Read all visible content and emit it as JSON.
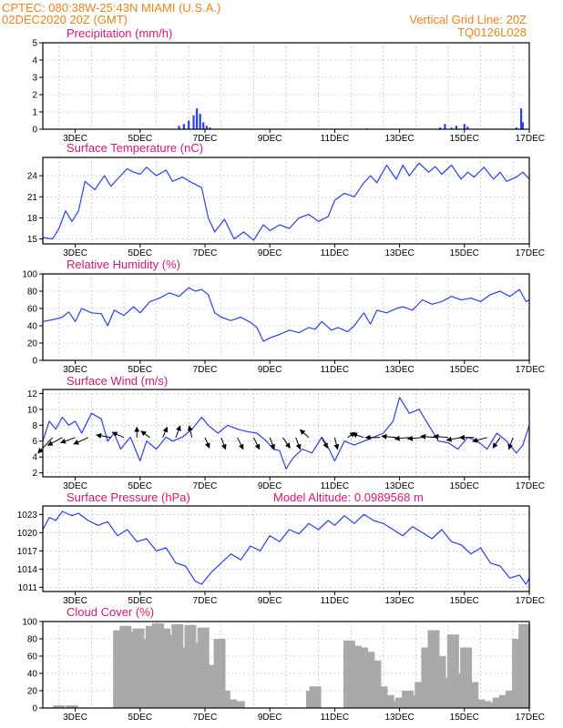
{
  "header": {
    "line1": "CPTEC:   080:38W-25:43N   MIAMI (U.S.A.)",
    "line2": "02DEC2020 20Z (GMT)",
    "right1": "Vertical Grid Line: 20Z",
    "right2": "TQ0126L028"
  },
  "colors": {
    "line": "#2b3fe8",
    "cloud": "#a9a9a9",
    "title": "#d4157a",
    "header": "#e8821e"
  },
  "chart_data": [
    {
      "type": "bar",
      "title": "Precipitation (mm/h)",
      "ylim": [
        0,
        5
      ],
      "yticks": [
        0,
        1,
        2,
        3,
        4,
        5
      ],
      "xticks": [
        "3DEC",
        "5DEC",
        "7DEC",
        "9DEC",
        "11DEC",
        "13DEC",
        "15DEC",
        "17DEC"
      ],
      "grid": true,
      "x": [
        6.2,
        6.35,
        6.5,
        6.65,
        6.75,
        6.85,
        6.95,
        7.05,
        7.15,
        12.0,
        14.25,
        14.4,
        14.6,
        14.75,
        15.0,
        15.1,
        16.6,
        16.75,
        16.8
      ],
      "values": [
        0.2,
        0.3,
        0.5,
        0.8,
        1.2,
        0.9,
        0.4,
        0.2,
        0.1,
        0.05,
        0.1,
        0.3,
        0.1,
        0.2,
        0.3,
        0.15,
        0.1,
        1.2,
        0.4
      ]
    },
    {
      "type": "line",
      "title": "Surface Temperature (nC)",
      "ylim": [
        14.3,
        26.6
      ],
      "yticks": [
        15,
        18,
        21,
        24
      ],
      "xticks": [
        "3DEC",
        "5DEC",
        "7DEC",
        "9DEC",
        "11DEC",
        "13DEC",
        "15DEC",
        "17DEC"
      ],
      "grid": true,
      "x": [
        2.0,
        2.3,
        2.5,
        2.7,
        2.9,
        3.1,
        3.3,
        3.6,
        3.9,
        4.1,
        4.3,
        4.6,
        4.8,
        5.0,
        5.2,
        5.5,
        5.8,
        6.0,
        6.3,
        6.6,
        6.9,
        7.1,
        7.3,
        7.6,
        7.9,
        8.2,
        8.5,
        8.8,
        9.0,
        9.3,
        9.6,
        9.9,
        10.2,
        10.5,
        10.8,
        11.0,
        11.3,
        11.6,
        11.9,
        12.1,
        12.3,
        12.6,
        12.9,
        13.1,
        13.3,
        13.6,
        13.9,
        14.1,
        14.3,
        14.6,
        14.9,
        15.1,
        15.3,
        15.6,
        15.9,
        16.1,
        16.3,
        16.6,
        16.8,
        17.0
      ],
      "values": [
        15.2,
        15.0,
        16.5,
        19.0,
        17.5,
        19.0,
        23.2,
        22.0,
        24.0,
        22.5,
        23.5,
        25.0,
        24.5,
        24.2,
        25.2,
        24.0,
        24.8,
        23.2,
        23.8,
        23.0,
        22.3,
        18.0,
        16.0,
        17.8,
        15.0,
        16.0,
        14.8,
        17.0,
        16.2,
        17.0,
        16.5,
        18.0,
        18.5,
        17.5,
        18.2,
        20.5,
        21.5,
        21.0,
        23.0,
        24.0,
        23.0,
        25.5,
        23.5,
        25.5,
        24.0,
        25.8,
        24.5,
        25.3,
        24.2,
        25.5,
        23.5,
        24.5,
        23.8,
        25.2,
        23.5,
        24.5,
        23.2,
        23.8,
        24.5,
        23.5
      ]
    },
    {
      "type": "line",
      "title": "Relative Humidity (%)",
      "ylim": [
        0,
        100
      ],
      "yticks": [
        0,
        20,
        40,
        60,
        80,
        100
      ],
      "xticks": [
        "3DEC",
        "5DEC",
        "7DEC",
        "9DEC",
        "11DEC",
        "13DEC",
        "15DEC",
        "17DEC"
      ],
      "grid": true,
      "x": [
        2.0,
        2.3,
        2.6,
        2.8,
        3.0,
        3.2,
        3.5,
        3.8,
        4.0,
        4.2,
        4.5,
        4.8,
        5.0,
        5.3,
        5.6,
        5.9,
        6.2,
        6.5,
        6.7,
        6.9,
        7.1,
        7.3,
        7.5,
        7.8,
        8.1,
        8.4,
        8.6,
        8.8,
        9.0,
        9.3,
        9.6,
        9.9,
        10.2,
        10.4,
        10.6,
        10.9,
        11.1,
        11.4,
        11.6,
        11.9,
        12.1,
        12.3,
        12.6,
        12.9,
        13.1,
        13.4,
        13.7,
        14.0,
        14.3,
        14.6,
        14.9,
        15.2,
        15.5,
        15.8,
        16.1,
        16.4,
        16.7,
        16.9,
        17.0
      ],
      "values": [
        45,
        47,
        50,
        56,
        45,
        60,
        55,
        54,
        40,
        58,
        52,
        62,
        55,
        68,
        72,
        78,
        74,
        84,
        80,
        82,
        76,
        55,
        50,
        46,
        50,
        44,
        38,
        22,
        26,
        30,
        35,
        32,
        38,
        36,
        45,
        35,
        38,
        33,
        40,
        55,
        42,
        58,
        55,
        60,
        62,
        58,
        70,
        65,
        68,
        74,
        70,
        72,
        68,
        76,
        80,
        74,
        82,
        68,
        70
      ]
    },
    {
      "type": "line",
      "title": "Surface Wind (m/s)",
      "ylim": [
        1.5,
        12.5
      ],
      "yticks": [
        2,
        4,
        6,
        8,
        10,
        12
      ],
      "xticks": [
        "3DEC",
        "5DEC",
        "7DEC",
        "9DEC",
        "11DEC",
        "13DEC",
        "15DEC",
        "17DEC"
      ],
      "grid": true,
      "x": [
        2.0,
        2.2,
        2.4,
        2.6,
        2.8,
        3.0,
        3.2,
        3.5,
        3.8,
        4.0,
        4.2,
        4.4,
        4.7,
        5.0,
        5.2,
        5.5,
        5.8,
        6.0,
        6.3,
        6.6,
        6.9,
        7.1,
        7.4,
        7.7,
        8.0,
        8.3,
        8.6,
        8.9,
        9.1,
        9.3,
        9.5,
        9.7,
        10.0,
        10.3,
        10.6,
        10.8,
        11.0,
        11.3,
        11.6,
        11.9,
        12.2,
        12.5,
        12.8,
        13.0,
        13.3,
        13.6,
        13.9,
        14.2,
        14.5,
        14.8,
        15.1,
        15.4,
        15.7,
        16.0,
        16.3,
        16.6,
        16.8,
        17.0
      ],
      "values": [
        6.0,
        8.5,
        7.5,
        9.0,
        8.0,
        8.5,
        7.0,
        9.5,
        8.8,
        6.0,
        7.0,
        5.0,
        6.5,
        3.5,
        6.0,
        5.0,
        6.5,
        6.0,
        6.5,
        7.5,
        9.0,
        8.0,
        7.0,
        8.0,
        7.5,
        7.2,
        7.0,
        6.0,
        5.0,
        4.8,
        2.5,
        3.8,
        5.0,
        4.5,
        6.5,
        5.2,
        3.5,
        6.0,
        5.5,
        6.0,
        6.5,
        7.0,
        8.5,
        11.5,
        9.5,
        10.0,
        8.0,
        6.0,
        5.8,
        5.0,
        6.5,
        6.0,
        5.0,
        7.0,
        6.0,
        4.5,
        5.5,
        8.0
      ]
    },
    {
      "type": "line",
      "title": "Surface Pressure (hPa)",
      "ylim": [
        1010.3,
        1024.4
      ],
      "yticks": [
        1011,
        1014,
        1017,
        1020,
        1023
      ],
      "xticks": [
        "3DEC",
        "5DEC",
        "7DEC",
        "9DEC",
        "11DEC",
        "13DEC",
        "15DEC",
        "17DEC"
      ],
      "grid": true,
      "x": [
        2.0,
        2.2,
        2.4,
        2.6,
        2.9,
        3.1,
        3.4,
        3.7,
        4.0,
        4.3,
        4.6,
        4.9,
        5.2,
        5.5,
        5.8,
        6.1,
        6.4,
        6.7,
        6.9,
        7.2,
        7.5,
        7.8,
        8.1,
        8.4,
        8.7,
        9.0,
        9.3,
        9.6,
        9.9,
        10.2,
        10.5,
        10.8,
        11.0,
        11.3,
        11.6,
        11.9,
        12.2,
        12.5,
        12.8,
        13.1,
        13.4,
        13.7,
        14.0,
        14.3,
        14.6,
        14.9,
        15.2,
        15.5,
        15.8,
        16.1,
        16.4,
        16.7,
        16.9,
        17.0
      ],
      "values": [
        1020.5,
        1022.5,
        1022.0,
        1023.5,
        1022.8,
        1023.2,
        1022.0,
        1021.2,
        1021.8,
        1019.5,
        1020.5,
        1018.5,
        1019.0,
        1017.0,
        1017.5,
        1015.0,
        1014.5,
        1012.0,
        1011.5,
        1013.5,
        1015.0,
        1016.5,
        1015.5,
        1017.8,
        1017.0,
        1019.5,
        1018.5,
        1020.5,
        1019.8,
        1021.5,
        1020.5,
        1022.0,
        1021.2,
        1022.8,
        1021.5,
        1023.0,
        1022.0,
        1021.5,
        1020.5,
        1019.5,
        1021.0,
        1020.0,
        1019.0,
        1020.5,
        1018.5,
        1018.0,
        1016.5,
        1017.5,
        1015.0,
        1014.5,
        1012.5,
        1013.0,
        1011.5,
        1012.5
      ]
    },
    {
      "type": "bar",
      "title": "Cloud Cover (%)",
      "ylim": [
        0,
        100
      ],
      "yticks": [
        0,
        20,
        40,
        60,
        80,
        100
      ],
      "xticks": [
        "3DEC",
        "5DEC",
        "7DEC",
        "9DEC",
        "11DEC",
        "13DEC",
        "15DEC",
        "17DEC"
      ],
      "grid": true,
      "x": [
        2.5,
        2.9,
        4.35,
        4.55,
        4.75,
        4.95,
        5.15,
        5.35,
        5.55,
        5.75,
        5.95,
        6.15,
        6.35,
        6.55,
        6.75,
        6.95,
        7.05,
        7.25,
        7.45,
        7.6,
        7.8,
        8.05,
        10.3,
        10.4,
        11.45,
        11.65,
        11.85,
        12.05,
        12.25,
        12.45,
        12.65,
        12.85,
        13.05,
        13.25,
        13.45,
        13.65,
        13.85,
        14.05,
        14.25,
        14.45,
        14.65,
        14.85,
        15.05,
        15.25,
        15.45,
        15.65,
        15.85,
        16.05,
        16.25,
        16.45,
        16.65,
        16.85
      ],
      "values": [
        3,
        3,
        90,
        95,
        88,
        92,
        80,
        95,
        98,
        92,
        85,
        97,
        70,
        96,
        75,
        93,
        20,
        50,
        80,
        20,
        10,
        8,
        20,
        25,
        78,
        72,
        70,
        65,
        55,
        25,
        15,
        8,
        12,
        20,
        15,
        30,
        70,
        90,
        60,
        35,
        85,
        40,
        70,
        30,
        10,
        8,
        6,
        12,
        15,
        20,
        80,
        97
      ]
    }
  ],
  "wind_panel_extra": {
    "model_altitude": "Model Altitude: 0.0989568 m"
  }
}
